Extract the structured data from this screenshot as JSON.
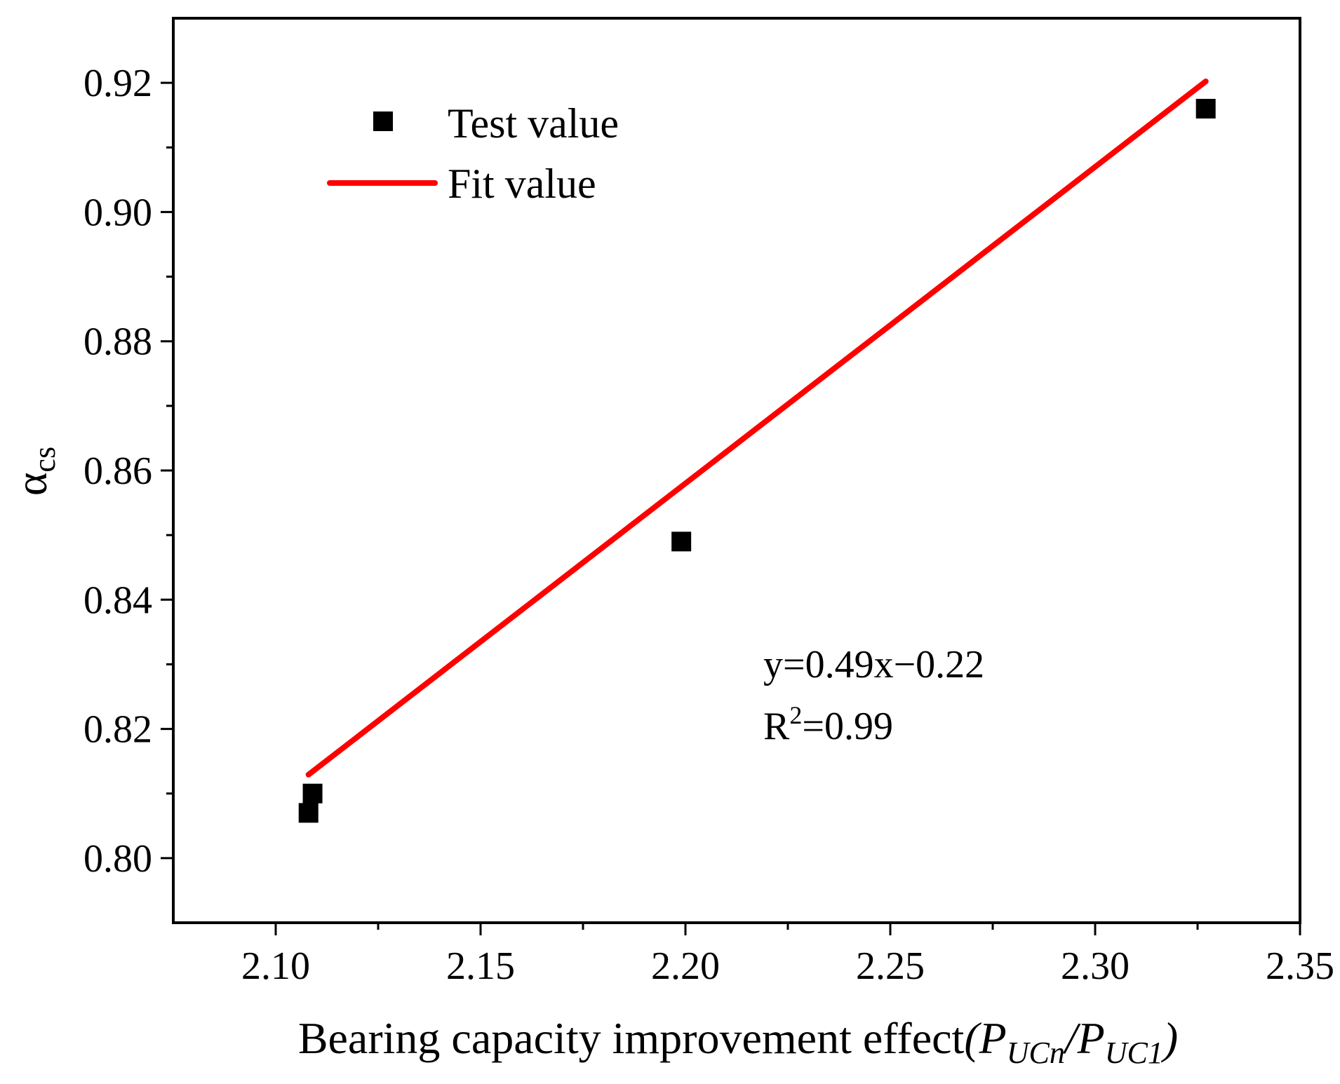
{
  "chart_data": {
    "type": "scatter",
    "title": "",
    "xlabel": {
      "main": "Bearing capacity improvement effect",
      "open": "(",
      "p1": "P",
      "sub1": "UCn",
      "slash": "/",
      "p2": "P",
      "sub2": "UC1",
      "close": ")"
    },
    "ylabel": {
      "symbol": "α",
      "sub": "cs"
    },
    "xlim": [
      2.075,
      2.35
    ],
    "ylim": [
      0.79,
      0.93
    ],
    "x_ticks": [
      "2.10",
      "2.15",
      "2.20",
      "2.25",
      "2.30",
      "2.35"
    ],
    "y_ticks": [
      "0.80",
      "0.82",
      "0.84",
      "0.86",
      "0.88",
      "0.90",
      "0.92"
    ],
    "series": [
      {
        "name": "Test value",
        "kind": "scatter",
        "marker": "square",
        "color": "#000000",
        "points": [
          {
            "x": 2.108,
            "y": 0.807
          },
          {
            "x": 2.109,
            "y": 0.81
          },
          {
            "x": 2.199,
            "y": 0.849
          },
          {
            "x": 2.327,
            "y": 0.916
          }
        ]
      },
      {
        "name": "Fit value",
        "kind": "line",
        "color": "#ff0000",
        "slope": 0.49,
        "intercept": -0.22,
        "x_range": [
          2.108,
          2.327
        ]
      }
    ],
    "legend": {
      "position": "top-left",
      "items": [
        {
          "label": "Test value"
        },
        {
          "label": "Fit value"
        }
      ]
    },
    "annotation": {
      "equation": "y=0.49x−0.22",
      "r2_prefix": "R",
      "r2_sup": "2",
      "r2_value": "=0.99"
    }
  }
}
